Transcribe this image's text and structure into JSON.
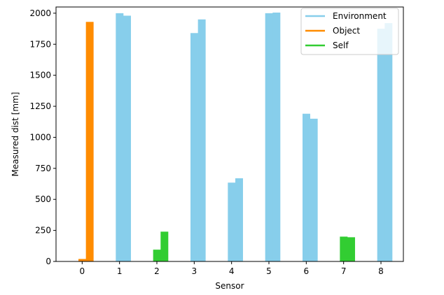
{
  "chart_data": {
    "type": "bar",
    "xlabel": "Sensor",
    "ylabel": "Measured dist [mm]",
    "xlim": [
      -0.7,
      8.6
    ],
    "ylim": [
      0,
      2050
    ],
    "xticks": [
      "0",
      "1",
      "2",
      "3",
      "4",
      "5",
      "6",
      "7",
      "8"
    ],
    "yticks": [
      "0",
      "250",
      "500",
      "750",
      "1000",
      "1250",
      "1500",
      "1750",
      "2000"
    ],
    "legend_position": "top-right",
    "grid": false,
    "colors": {
      "Environment": "#87ceeb",
      "Object": "#ff8c00",
      "Self": "#32cd32"
    },
    "legend": [
      {
        "label": "Environment",
        "color": "#87ceeb"
      },
      {
        "label": "Object",
        "color": "#ff8c00"
      },
      {
        "label": "Self",
        "color": "#32cd32"
      }
    ],
    "sensors": [
      {
        "sensor": 0,
        "class": "Object",
        "values": [
          20,
          1930
        ]
      },
      {
        "sensor": 1,
        "class": "Environment",
        "values": [
          2000,
          1980
        ]
      },
      {
        "sensor": 2,
        "class": "Self",
        "values": [
          95,
          240
        ]
      },
      {
        "sensor": 3,
        "class": "Environment",
        "values": [
          1840,
          1950
        ]
      },
      {
        "sensor": 4,
        "class": "Environment",
        "values": [
          635,
          670
        ]
      },
      {
        "sensor": 5,
        "class": "Environment",
        "values": [
          2000,
          2005
        ]
      },
      {
        "sensor": 6,
        "class": "Environment",
        "values": [
          1190,
          1150
        ]
      },
      {
        "sensor": 7,
        "class": "Self",
        "values": [
          200,
          195
        ]
      },
      {
        "sensor": 8,
        "class": "Environment",
        "values": [
          1875,
          1920
        ]
      }
    ]
  }
}
